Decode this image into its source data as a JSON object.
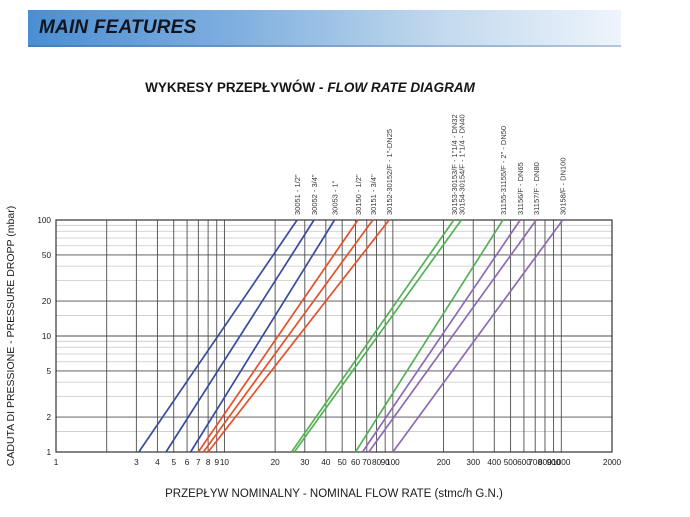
{
  "header": {
    "title": "MAIN FEATURES"
  },
  "title": {
    "polish": "WYKRESY PRZEPŁYWÓW -",
    "english": "FLOW RATE DIAGRAM"
  },
  "colors": {
    "header_gradient_start": "#4a8ed2",
    "header_gradient_end": "#eef4fb",
    "header_text": "#14141e",
    "grid_major": "#4d4d4d",
    "grid_minor": "#c8c8c8",
    "plot_border": "#333333",
    "tick_text": "#1a1a1a",
    "series_label_text": "#3a3a3a",
    "blue": "#3a4b9f",
    "red": "#e2512a",
    "green": "#56b056",
    "purple": "#8e6ab2"
  },
  "chart_data": {
    "type": "line",
    "title": "WYKRESY PRZEPŁYWÓW - FLOW RATE DIAGRAM",
    "xlabel": "PRZEPŁYW NOMINALNY - NOMINAL FLOW RATE (stmc/h G.N.)",
    "ylabel": "CADUTA DI PRESSIONE - PRESSURE DROPP (mbar)",
    "x_scale": "log",
    "y_scale": "log",
    "xlim": [
      1,
      2000
    ],
    "ylim": [
      1,
      100
    ],
    "grid": true,
    "legend_position": "rotated-labels-above-plot",
    "x_gridlines": [
      1,
      2,
      3,
      4,
      5,
      6,
      7,
      8,
      9,
      10,
      20,
      30,
      40,
      50,
      60,
      70,
      80,
      90,
      100,
      200,
      300,
      400,
      500,
      600,
      700,
      800,
      900,
      1000,
      2000
    ],
    "x_tick_labels": [
      1,
      3,
      4,
      5,
      6,
      7,
      8,
      9,
      10,
      20,
      30,
      40,
      50,
      60,
      70,
      80,
      90,
      100,
      200,
      300,
      400,
      500,
      600,
      700,
      800,
      900,
      1000,
      2000
    ],
    "y_major_gridlines": [
      1,
      2,
      5,
      10,
      20,
      50,
      100
    ],
    "y_minor_gridlines": [
      1.5,
      3,
      4,
      6,
      7,
      8,
      9,
      15,
      30,
      40,
      60,
      70,
      80,
      90
    ],
    "y_tick_labels": [
      100,
      50,
      20,
      10,
      5,
      2,
      1
    ],
    "series": [
      {
        "id": "30051",
        "label": "30051 - 1/2\"",
        "color": "#3a4b9f",
        "points": [
          [
            3.1,
            1
          ],
          [
            27,
            100
          ]
        ]
      },
      {
        "id": "30052",
        "label": "30052 - 3/4\"",
        "color": "#3a4b9f",
        "points": [
          [
            4.5,
            1
          ],
          [
            34,
            100
          ]
        ]
      },
      {
        "id": "30053",
        "label": "30053 - 1\"",
        "color": "#3a4b9f",
        "points": [
          [
            6.3,
            1
          ],
          [
            45,
            100
          ]
        ]
      },
      {
        "id": "30150",
        "label": "30150 - 1/2\"",
        "color": "#e2512a",
        "points": [
          [
            7.0,
            1
          ],
          [
            62,
            100
          ]
        ]
      },
      {
        "id": "30151",
        "label": "30151 - 3/4\"",
        "color": "#e2512a",
        "points": [
          [
            7.5,
            1
          ],
          [
            76,
            100
          ]
        ]
      },
      {
        "id": "30152",
        "label": "30152-30152/F - 1\"-DN25",
        "color": "#e2512a",
        "points": [
          [
            8.0,
            1
          ],
          [
            95,
            100
          ]
        ]
      },
      {
        "id": "30153",
        "label": "30153-30153/F - 1\"1/4 - DN32",
        "color": "#56b056",
        "points": [
          [
            25,
            1
          ],
          [
            230,
            100
          ]
        ]
      },
      {
        "id": "30154",
        "label": "30154-30154/F - 1\"1/4 - DN40",
        "color": "#56b056",
        "points": [
          [
            26,
            1
          ],
          [
            255,
            100
          ]
        ]
      },
      {
        "id": "31155",
        "label": "31155-31155/F - 2\" - DN50",
        "color": "#56b056",
        "points": [
          [
            60,
            1
          ],
          [
            450,
            100
          ]
        ]
      },
      {
        "id": "31156",
        "label": "31156/F - DN65",
        "color": "#8e6ab2",
        "points": [
          [
            66,
            1
          ],
          [
            570,
            100
          ]
        ]
      },
      {
        "id": "31157",
        "label": "31157/F - DN80",
        "color": "#8e6ab2",
        "points": [
          [
            72,
            1
          ],
          [
            710,
            100
          ]
        ]
      },
      {
        "id": "30158",
        "label": "30158/F - DN100",
        "color": "#8e6ab2",
        "points": [
          [
            100,
            1
          ],
          [
            1020,
            100
          ]
        ]
      }
    ]
  }
}
